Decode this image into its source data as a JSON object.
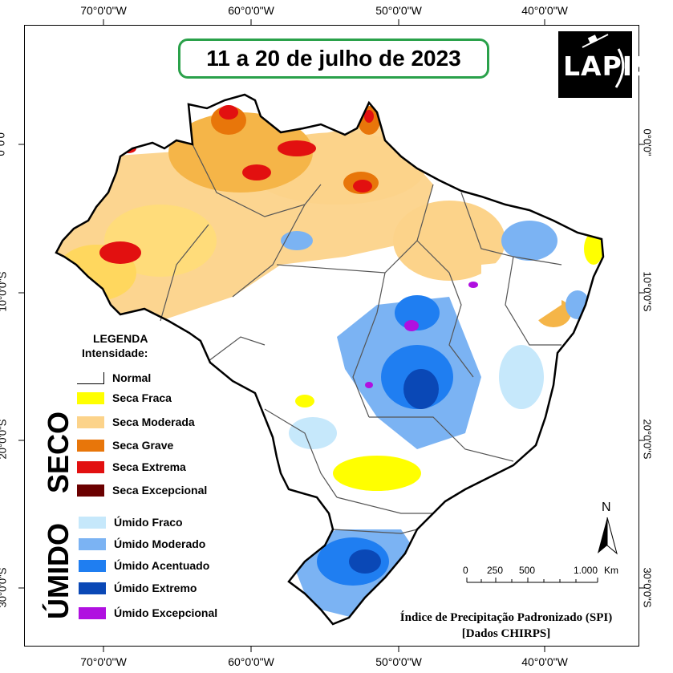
{
  "title": "11 a 20 de julho de 2023",
  "logo": {
    "text": "LAPIS",
    "icon": "satellite-icon"
  },
  "axes": {
    "lon_labels": [
      "70°0'0\"W",
      "60°0'0\"W",
      "50°0'0\"W",
      "40°0'0\"W"
    ],
    "lat_labels": [
      "0°0'0\"",
      "10°0'0\"S",
      "20°0'0\"S",
      "30°0'0\"S"
    ]
  },
  "legend": {
    "title": "LEGENDA",
    "subtitle": "Intensidade:",
    "normal": {
      "label": "Normal",
      "color": "#ffffff"
    },
    "dry_group": "SECO",
    "dry": [
      {
        "label": "Seca Fraca",
        "color": "#ffff00"
      },
      {
        "label": "Seca Moderada",
        "color": "#fcd38a"
      },
      {
        "label": "Seca Grave",
        "color": "#e8760a"
      },
      {
        "label": "Seca Extrema",
        "color": "#e21010"
      },
      {
        "label": "Seca Excepcional",
        "color": "#6b0000"
      }
    ],
    "wet_group": "ÚMIDO",
    "wet": [
      {
        "label": "Úmido Fraco",
        "color": "#c6e8fb"
      },
      {
        "label": "Úmido Moderado",
        "color": "#7bb3f3"
      },
      {
        "label": "Úmido Acentuado",
        "color": "#1f7ef1"
      },
      {
        "label": "Úmido Extremo",
        "color": "#0a48b6"
      },
      {
        "label": "Úmido Excepcional",
        "color": "#b010e0"
      }
    ]
  },
  "north_arrow": "N",
  "scale_bar": {
    "labels": [
      "0",
      "250",
      "500",
      "1.000"
    ],
    "unit": "Km"
  },
  "credit": {
    "line1": "Índice de Precipitação Padronizado (SPI)",
    "line2": "[Dados CHIRPS]"
  }
}
